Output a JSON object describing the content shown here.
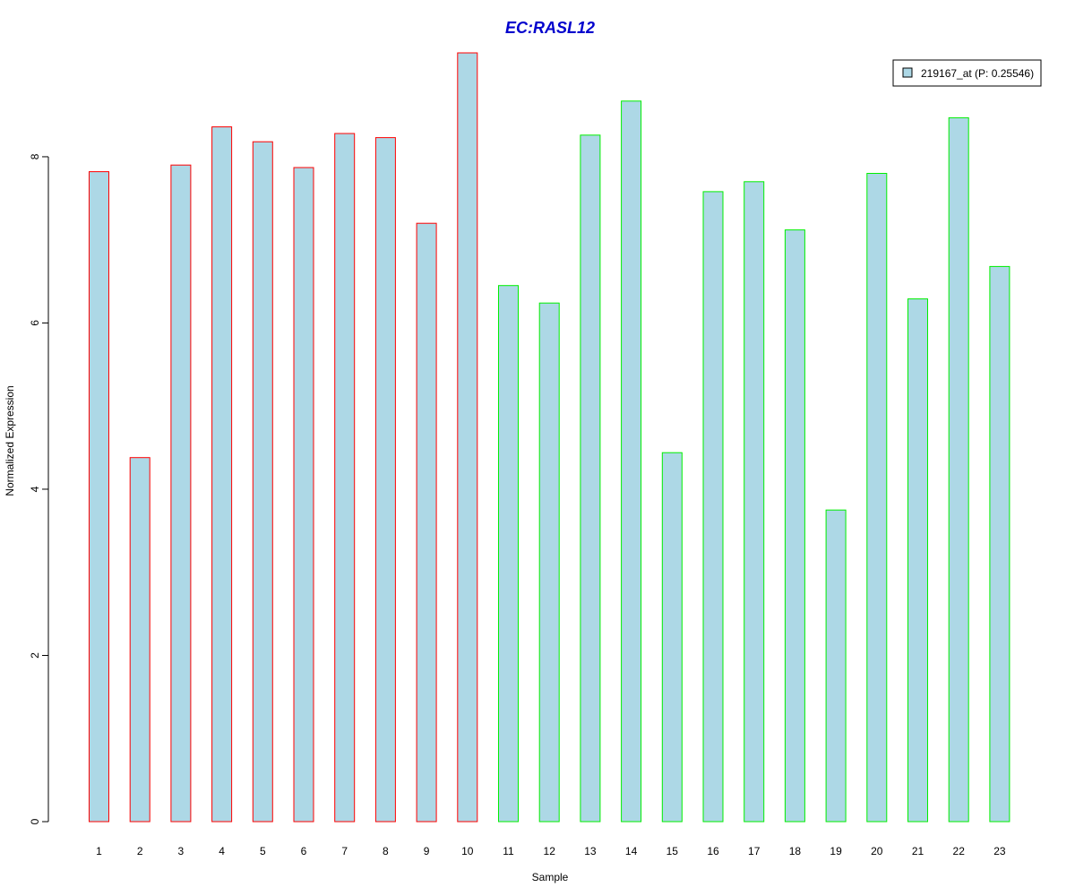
{
  "chart_data": {
    "type": "bar",
    "title": "EC:RASL12",
    "xlabel": "Sample",
    "ylabel": "Normalized Expression",
    "categories": [
      "1",
      "2",
      "3",
      "4",
      "5",
      "6",
      "7",
      "8",
      "9",
      "10",
      "11",
      "12",
      "13",
      "14",
      "15",
      "16",
      "17",
      "18",
      "19",
      "20",
      "21",
      "22",
      "23"
    ],
    "values": [
      7.82,
      4.38,
      7.9,
      8.36,
      8.18,
      7.87,
      8.28,
      8.23,
      7.2,
      9.25,
      6.45,
      6.24,
      8.26,
      8.67,
      4.44,
      7.58,
      7.7,
      7.12,
      3.75,
      7.8,
      6.29,
      8.47,
      6.68
    ],
    "groups": [
      1,
      1,
      1,
      1,
      1,
      1,
      1,
      1,
      1,
      1,
      2,
      2,
      2,
      2,
      2,
      2,
      2,
      2,
      2,
      2,
      2,
      2,
      2
    ],
    "group_colors": {
      "1": "#ff0000",
      "2": "#00ee00"
    },
    "bar_fill": "#add8e6",
    "title_color": "#0000cd",
    "ylim": [
      0,
      9.25
    ],
    "yticks": [
      0,
      2,
      4,
      6,
      8
    ],
    "grid": false,
    "legend": {
      "position": "top-right",
      "entries": [
        {
          "label": "219167_at (P: 0.25546)",
          "fill": "#add8e6"
        }
      ]
    }
  }
}
